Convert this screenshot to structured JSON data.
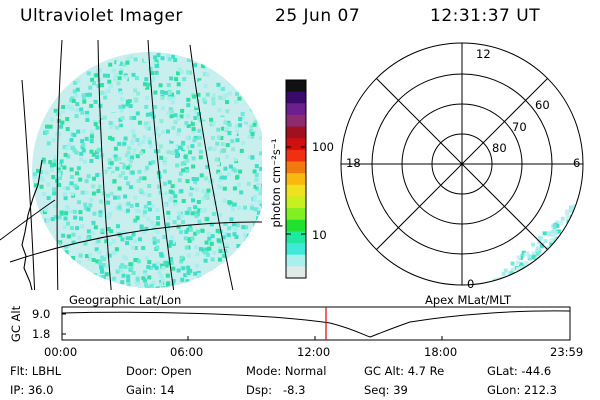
{
  "header": {
    "title": "Ultraviolet Imager",
    "date": "25 Jun 07",
    "time": "12:31:37 UT"
  },
  "colorbar": {
    "unit_label": "photon cm⁻²s⁻¹",
    "ticks": [
      "100",
      "10"
    ],
    "colors": [
      "#111111",
      "#3a0a6a",
      "#6e1f8e",
      "#8e2a6e",
      "#a01020",
      "#d01010",
      "#f03010",
      "#f07a10",
      "#f8b810",
      "#f0e020",
      "#c8f020",
      "#80f020",
      "#20e030",
      "#20e8a0",
      "#40e8d8",
      "#a8f0ee",
      "#e0e8e8"
    ]
  },
  "left_panel": {
    "label": "Geographic Lat/Lon"
  },
  "polar_plot": {
    "label": "Apex MLat/MLT",
    "mlt_labels": [
      "12",
      "18",
      "6",
      "0"
    ],
    "lat_labels": [
      "60",
      "70",
      "80"
    ]
  },
  "timeline": {
    "axis_label": "GC Alt",
    "y_ticks": [
      "9.0",
      "1.8"
    ],
    "x_ticks": [
      "00:00",
      "06:00",
      "12:00",
      "18:00",
      "23:59"
    ],
    "marker_color": "#e00000"
  },
  "status": {
    "flt_label": "Flt:",
    "flt_value": "LBHL",
    "ip_label": "IP:",
    "ip_value": "36.0",
    "door_label": "Door:",
    "door_value": "Open",
    "gain_label": "Gain:",
    "gain_value": "14",
    "mode_label": "Mode:",
    "mode_value": "Normal",
    "dsp_label": "Dsp:",
    "dsp_value": "-8.3",
    "gcalt_label": "GC Alt:",
    "gcalt_value": "4.7 Re",
    "seq_label": "Seq:",
    "seq_value": "39",
    "glat_label": "GLat:",
    "glat_value": "-44.6",
    "glon_label": "GLon:",
    "glon_value": "212.3"
  }
}
